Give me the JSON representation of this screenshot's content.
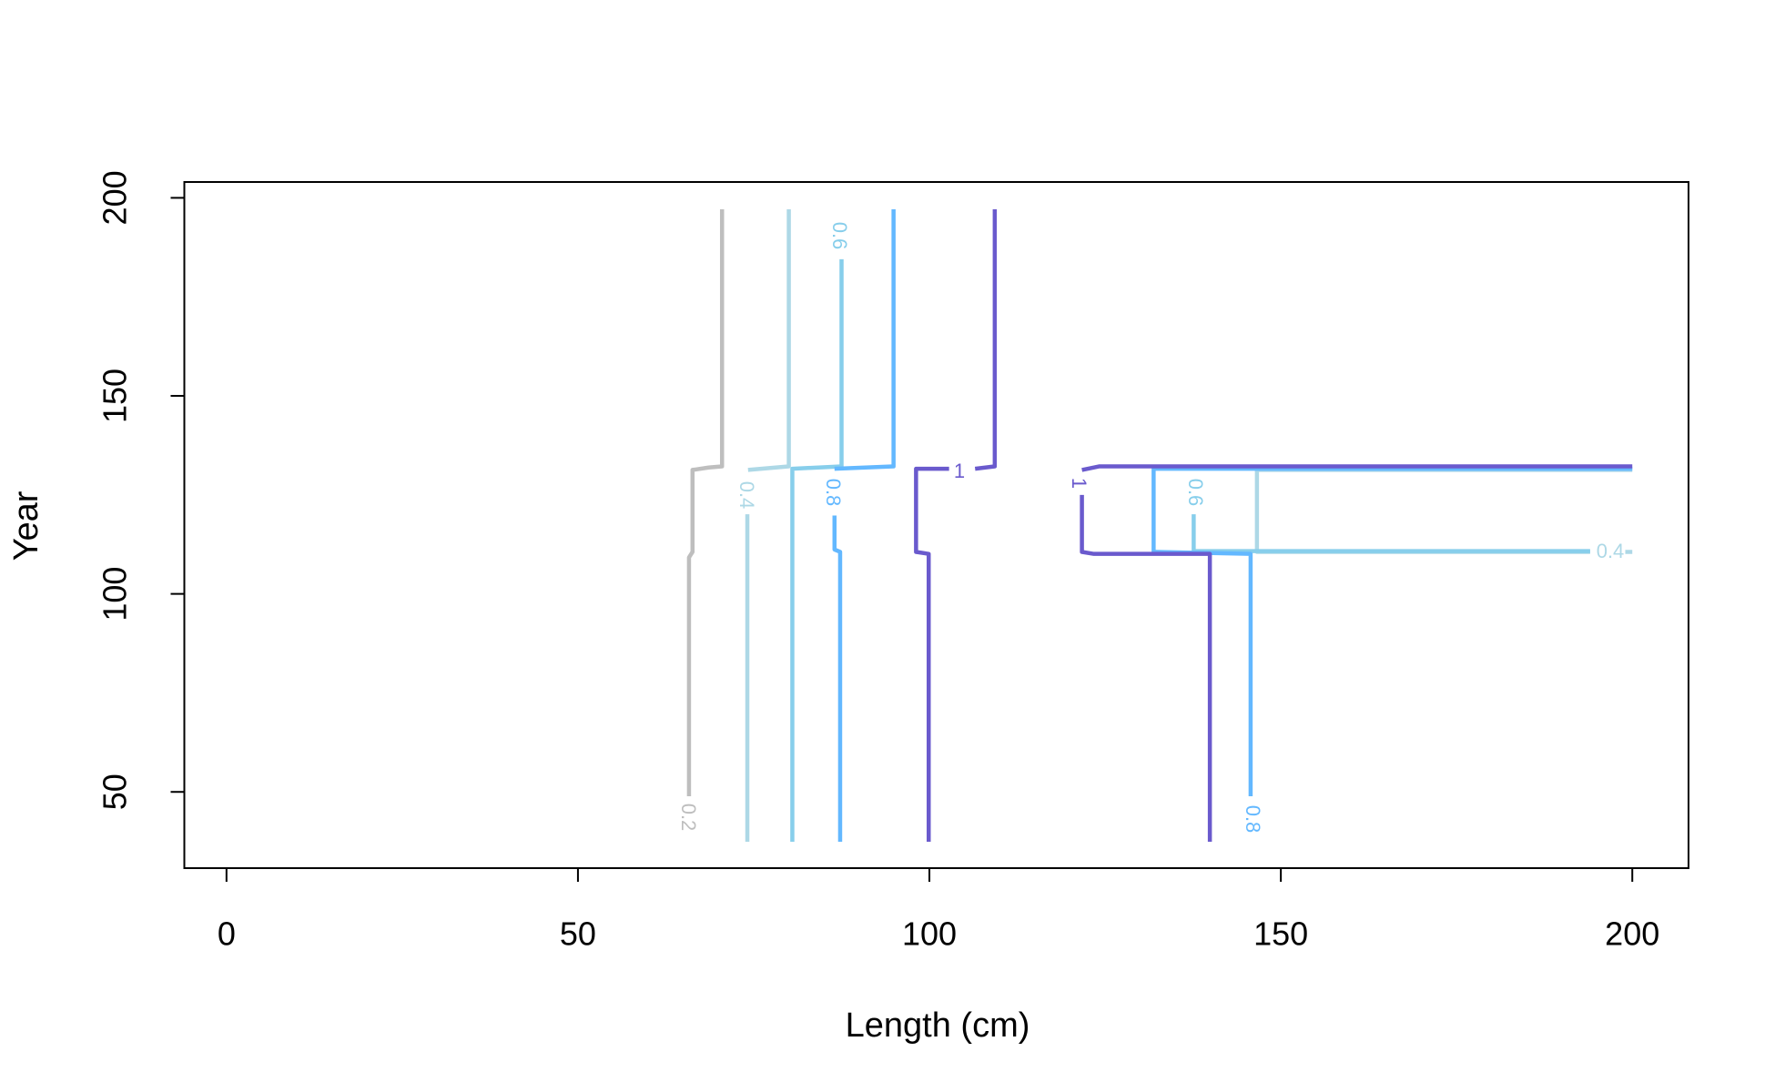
{
  "chart_data": {
    "type": "contour",
    "x_label": "Length (cm)",
    "y_label": "Year",
    "xlim": [
      -6,
      208
    ],
    "ylim": [
      30.75,
      204
    ],
    "xticks": [
      0,
      50,
      100,
      150,
      200
    ],
    "yticks": [
      50,
      100,
      150,
      200
    ],
    "series": [
      {
        "name": "0.2",
        "color": "#bebebe",
        "x": [
          70.5,
          70.5,
          68.6,
          66.3,
          66.3,
          65.8,
          65.8
        ],
        "values": [
          197.1,
          132.2,
          131.9,
          131.3,
          110.6,
          109.2,
          48.9
        ]
      },
      {
        "name": "0.4",
        "color": "#add8e6",
        "x": [
          80,
          80,
          74.2,
          null,
          74.1,
          74.1,
          null,
          200,
          146.6,
          146.6,
          194,
          null,
          199,
          200
        ],
        "values": [
          197.1,
          132.2,
          131.3,
          null,
          120.1,
          37.4,
          null,
          131.3,
          131.3,
          110.6,
          110.6,
          null,
          110.6,
          110.6
        ]
      },
      {
        "name": "0.6",
        "color": "#87ceeb",
        "x": [
          87.5,
          87.5,
          80.5,
          80.5,
          null,
          137.6,
          137.6,
          194
        ],
        "values": [
          184.5,
          132.2,
          131.6,
          37.4,
          null,
          120.1,
          110.8,
          110.8
        ]
      },
      {
        "name": "0.8",
        "color": "#63b8ff",
        "x": [
          94.9,
          94.9,
          86.5,
          null,
          86.5,
          86.5,
          87.3,
          87.3,
          null,
          145.7,
          145.7,
          131.9,
          131.9,
          200
        ],
        "values": [
          197.1,
          132.2,
          131.6,
          null,
          119.8,
          111.2,
          110.6,
          37.4,
          null,
          48.9,
          110.1,
          110.6,
          131.6,
          131.6
        ]
      },
      {
        "name": "1",
        "color": "#6a5acd",
        "x": [
          109.3,
          109.3,
          106.5,
          null,
          102.8,
          98.1,
          98.1,
          99.9,
          99.9,
          null,
          200,
          124.2,
          121.7,
          null,
          121.7,
          121.7,
          123.4,
          139.9,
          139.9
        ],
        "values": [
          197.1,
          132.2,
          131.6,
          null,
          131.6,
          131.6,
          110.6,
          110.1,
          37.4,
          null,
          132.2,
          132.2,
          131.3,
          null,
          125,
          110.6,
          110.1,
          110.1,
          37.4
        ]
      }
    ]
  }
}
